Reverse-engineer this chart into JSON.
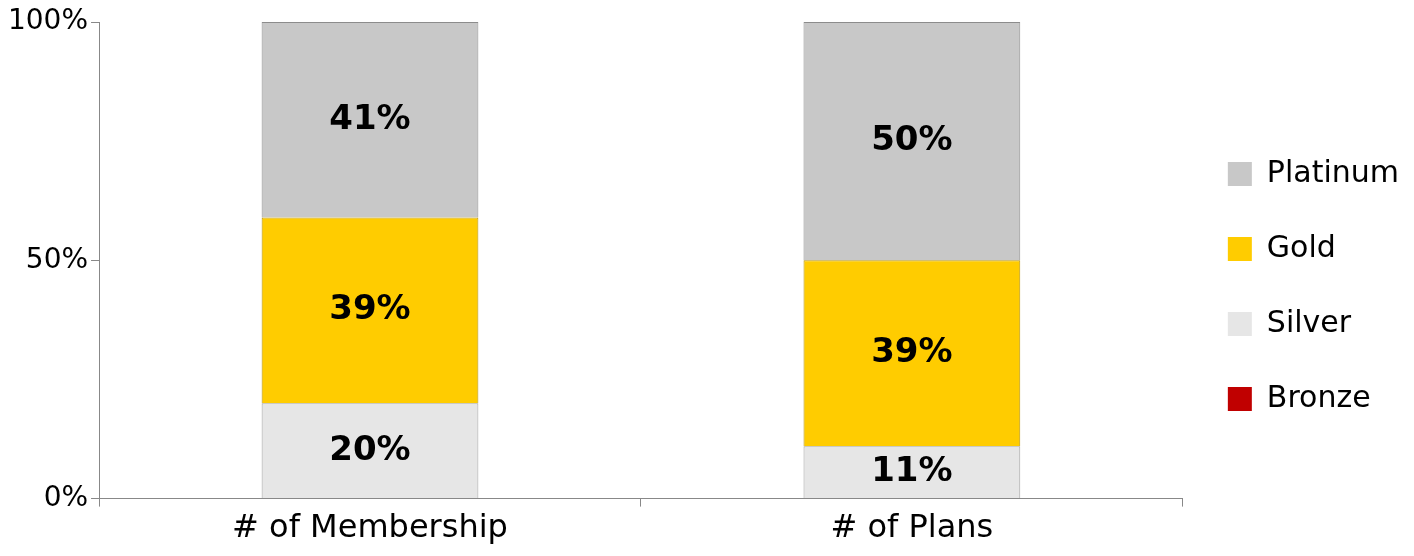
{
  "chart_data": {
    "type": "bar",
    "stacked": true,
    "categories": [
      "# of Membership",
      "# of Plans"
    ],
    "series": [
      {
        "name": "Bronze",
        "color": "#c00000",
        "values": [
          0,
          0
        ],
        "value_labels": [
          null,
          null
        ]
      },
      {
        "name": "Silver",
        "color": "#e6e6e6",
        "values": [
          20,
          11
        ],
        "value_labels": [
          "20%",
          "11%"
        ]
      },
      {
        "name": "Gold",
        "color": "#ffcc00",
        "values": [
          39,
          39
        ],
        "value_labels": [
          "39%",
          "39%"
        ]
      },
      {
        "name": "Platinum",
        "color": "#c8c8c8",
        "values": [
          41,
          50
        ],
        "value_labels": [
          "41%",
          "50%"
        ]
      }
    ],
    "ylim": [
      0,
      100
    ],
    "yticks": [
      {
        "value": 0,
        "label": "0%"
      },
      {
        "value": 50,
        "label": "50%"
      },
      {
        "value": 100,
        "label": "100%"
      }
    ],
    "grid": false,
    "legend": "right"
  }
}
